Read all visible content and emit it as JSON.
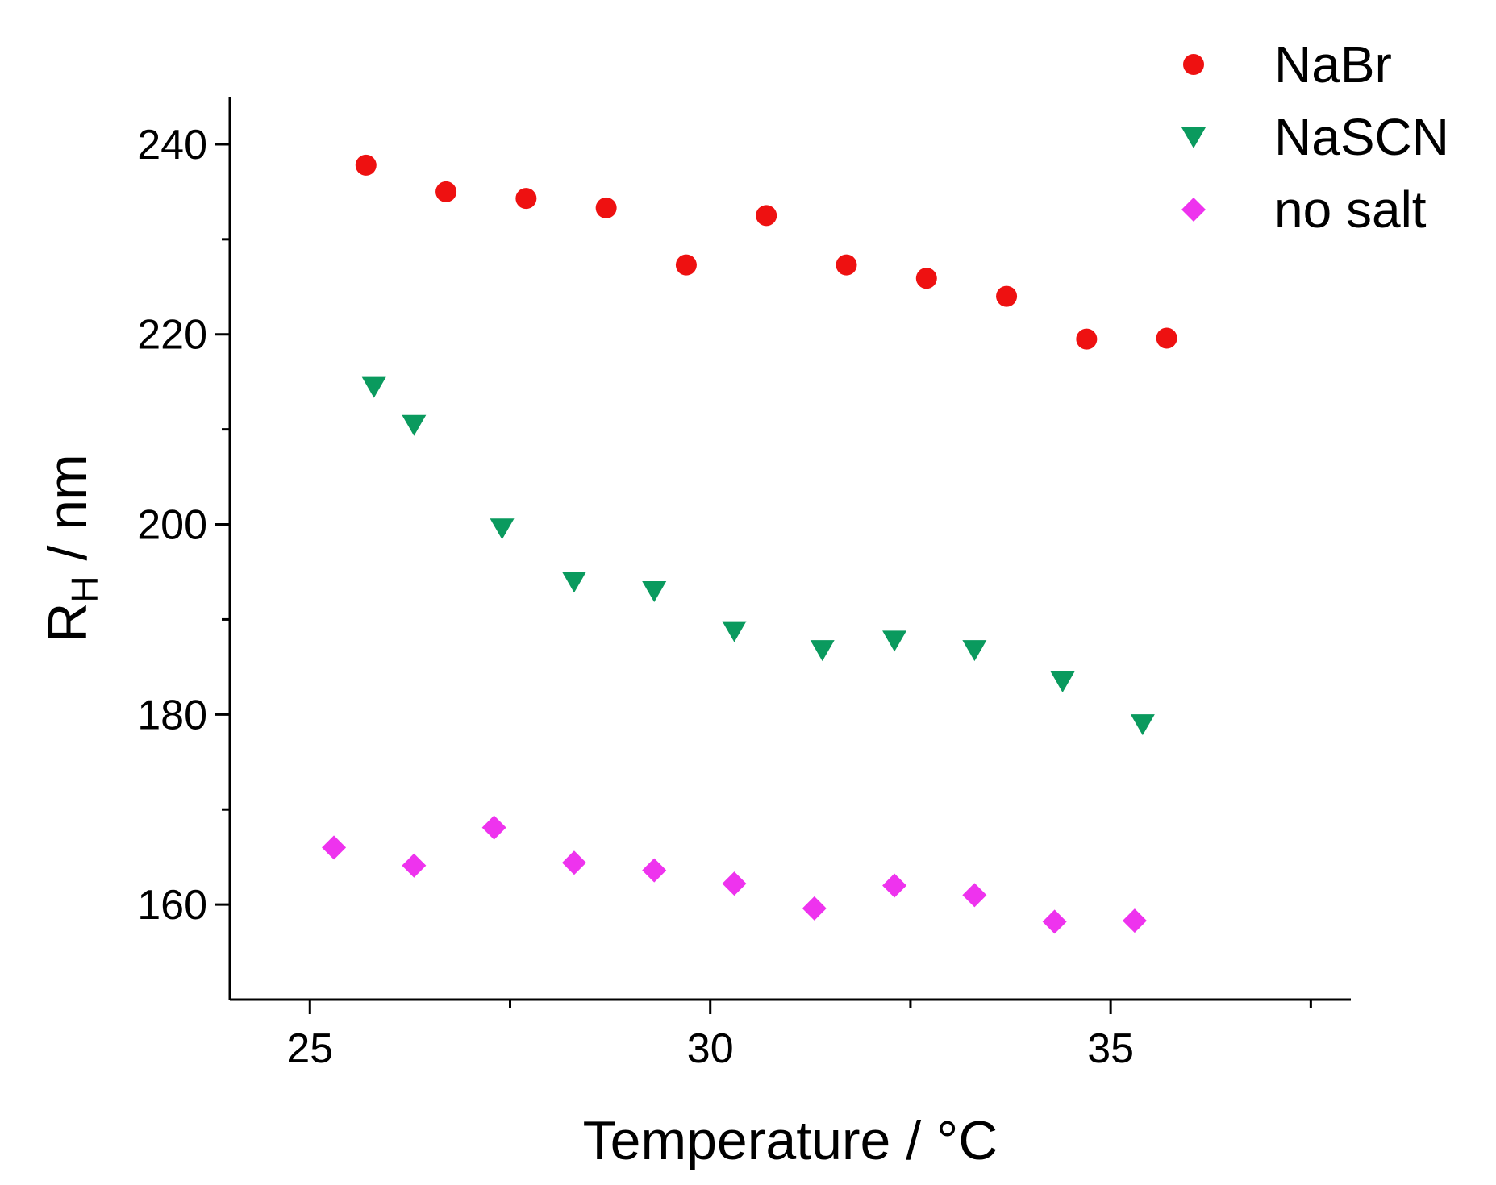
{
  "chart_data": {
    "type": "scatter",
    "title": "",
    "xlabel": "Temperature / °C",
    "ylabel_main": "R",
    "ylabel_sub": "H",
    "ylabel_rest": " / nm",
    "xlim": [
      24.0,
      38.0
    ],
    "ylim": [
      150,
      245
    ],
    "xticks": [
      25,
      30,
      35
    ],
    "xticks_minor": [
      27.5,
      32.5,
      37.5
    ],
    "yticks": [
      160,
      180,
      200,
      220,
      240
    ],
    "yticks_minor": [
      170,
      190,
      210,
      230
    ],
    "legend_position": "top-right",
    "grid": false,
    "series": [
      {
        "name": "NaBr",
        "marker": "circle",
        "color": "#ee1111",
        "x": [
          25.7,
          26.7,
          27.7,
          28.7,
          29.7,
          30.7,
          31.7,
          32.7,
          33.7,
          34.7,
          35.7
        ],
        "y": [
          237.8,
          235.0,
          234.3,
          233.3,
          227.3,
          232.5,
          227.3,
          225.9,
          224.0,
          219.5,
          219.6
        ]
      },
      {
        "name": "NaSCN",
        "marker": "triangle-down",
        "color": "#0a9a5e",
        "x": [
          25.8,
          26.3,
          27.4,
          28.3,
          29.3,
          30.3,
          31.4,
          32.3,
          33.3,
          34.4,
          35.4
        ],
        "y": [
          214.5,
          210.5,
          199.6,
          194.0,
          193.0,
          188.8,
          186.8,
          187.8,
          186.8,
          183.5,
          179.0
        ]
      },
      {
        "name": "no salt",
        "marker": "diamond",
        "color": "#ee33ee",
        "x": [
          25.3,
          26.3,
          27.3,
          28.3,
          29.3,
          30.3,
          31.3,
          32.3,
          33.3,
          34.3,
          35.3
        ],
        "y": [
          166.0,
          164.1,
          168.1,
          164.4,
          163.6,
          162.2,
          159.6,
          162.0,
          161.0,
          158.2,
          158.3
        ]
      }
    ]
  }
}
